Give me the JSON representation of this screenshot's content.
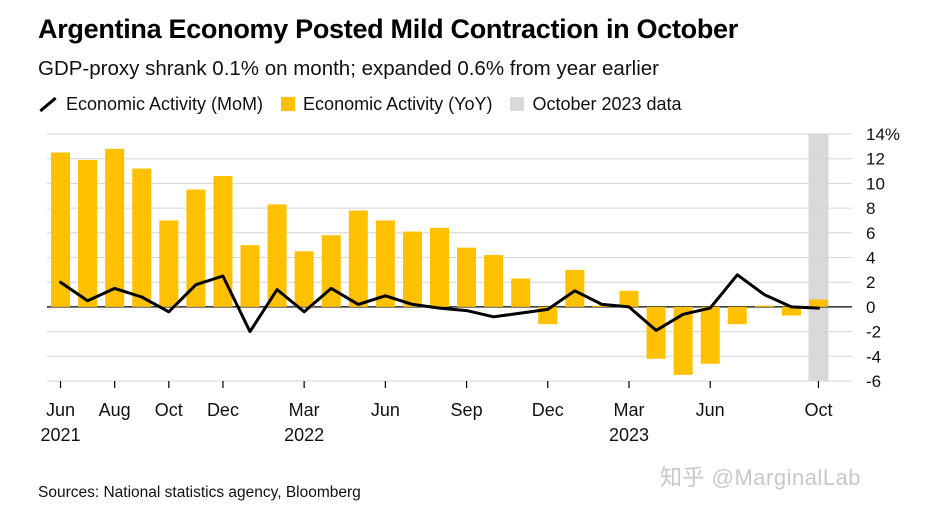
{
  "title": "Argentina Economy Posted Mild Contraction in October",
  "subtitle": "GDP-proxy shrank 0.1% on month; expanded 0.6% from year earlier",
  "legend": [
    {
      "label": "Economic Activity (MoM)",
      "kind": "line",
      "color": "#000000"
    },
    {
      "label": "Economic Activity (YoY)",
      "kind": "box",
      "color": "#FFC000"
    },
    {
      "label": "October 2023 data",
      "kind": "box",
      "color": "#D9D9D9"
    }
  ],
  "source": "Sources: National statistics agency, Bloomberg",
  "watermark": "知乎 @MarginalLab",
  "chart_data": {
    "type": "bar",
    "months": [
      "2021-06",
      "2021-07",
      "2021-08",
      "2021-09",
      "2021-10",
      "2021-11",
      "2021-12",
      "2022-01",
      "2022-02",
      "2022-03",
      "2022-04",
      "2022-05",
      "2022-06",
      "2022-07",
      "2022-08",
      "2022-09",
      "2022-10",
      "2022-11",
      "2022-12",
      "2023-01",
      "2023-02",
      "2023-03",
      "2023-04",
      "2023-05",
      "2023-06",
      "2023-07",
      "2023-08",
      "2023-09",
      "2023-10"
    ],
    "series": [
      {
        "name": "Economic Activity (YoY)",
        "type": "bar",
        "color": "#FFC000",
        "values": [
          12.5,
          11.9,
          12.8,
          11.2,
          7.0,
          9.5,
          10.6,
          5.0,
          8.3,
          4.5,
          5.8,
          7.8,
          7.0,
          6.1,
          6.4,
          4.8,
          4.2,
          2.3,
          -1.4,
          3.0,
          0.1,
          1.3,
          -4.2,
          -5.5,
          -4.6,
          -1.4,
          0.1,
          -0.7,
          0.6
        ]
      },
      {
        "name": "Economic Activity (MoM)",
        "type": "line",
        "color": "#000000",
        "values": [
          2.0,
          0.5,
          1.5,
          0.8,
          -0.4,
          1.8,
          2.5,
          -2.0,
          1.4,
          -0.4,
          1.5,
          0.2,
          0.9,
          0.2,
          -0.1,
          -0.3,
          -0.8,
          -0.5,
          -0.2,
          1.3,
          0.2,
          0.0,
          -1.9,
          -0.6,
          -0.1,
          2.6,
          1.0,
          0.0,
          -0.1
        ]
      }
    ],
    "highlight": {
      "label": "October 2023 data",
      "month": "2023-10",
      "color": "#D9D9D9"
    },
    "ylim": [
      -6,
      14
    ],
    "yticks": [
      -6,
      -4,
      -2,
      0,
      2,
      4,
      6,
      8,
      10,
      12,
      14
    ],
    "ytick_labels": [
      "-6",
      "-4",
      "-2",
      "0",
      "2",
      "4",
      "6",
      "8",
      "10",
      "12",
      "14%"
    ],
    "xticks": [
      {
        "index": 0,
        "label": "Jun",
        "year": "2021"
      },
      {
        "index": 2,
        "label": "Aug",
        "year": ""
      },
      {
        "index": 4,
        "label": "Oct",
        "year": ""
      },
      {
        "index": 6,
        "label": "Dec",
        "year": ""
      },
      {
        "index": 9,
        "label": "Mar",
        "year": "2022"
      },
      {
        "index": 12,
        "label": "Jun",
        "year": ""
      },
      {
        "index": 15,
        "label": "Sep",
        "year": ""
      },
      {
        "index": 18,
        "label": "Dec",
        "year": ""
      },
      {
        "index": 21,
        "label": "Mar",
        "year": "2023"
      },
      {
        "index": 24,
        "label": "Jun",
        "year": ""
      },
      {
        "index": 28,
        "label": "Oct",
        "year": ""
      }
    ],
    "grid": true,
    "legend_position": "top-left"
  }
}
